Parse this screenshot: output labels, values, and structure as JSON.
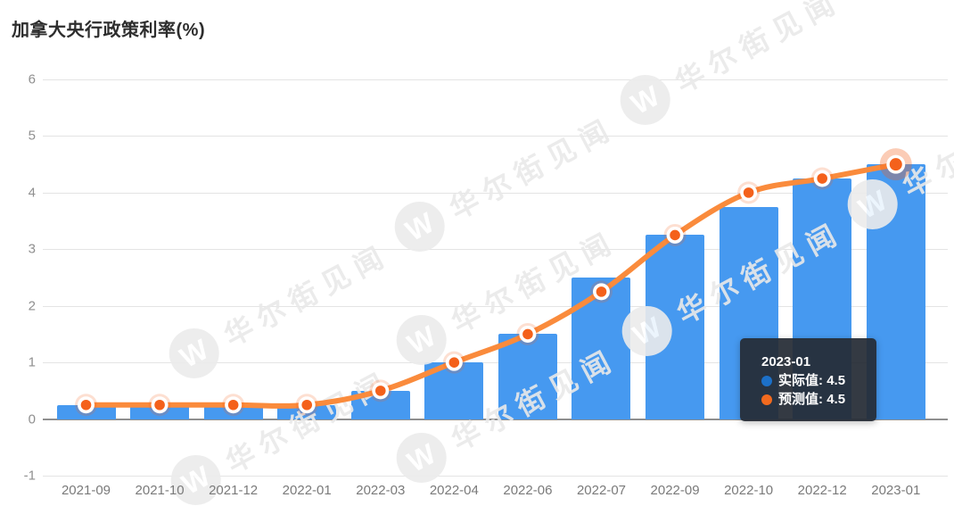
{
  "title": "加拿大央行政策利率(%)",
  "watermark": {
    "text": "华尔街见闻",
    "icon_letter": "W"
  },
  "tooltip": {
    "date": "2023-01",
    "items": [
      {
        "label": "实际值",
        "value": "4.5",
        "color": "#1c70c8"
      },
      {
        "label": "预测值",
        "value": "4.5",
        "color": "#f26a1e"
      }
    ]
  },
  "chart_data": {
    "type": "bar",
    "title": "加拿大央行政策利率(%)",
    "xlabel": "",
    "ylabel": "",
    "ylim": [
      -1,
      6
    ],
    "yticks": [
      6,
      5,
      4,
      3,
      2,
      1,
      0,
      -1
    ],
    "grid": true,
    "categories": [
      "2021-09",
      "2021-10",
      "2021-12",
      "2022-01",
      "2022-03",
      "2022-04",
      "2022-06",
      "2022-07",
      "2022-09",
      "2022-10",
      "2022-12",
      "2023-01"
    ],
    "series": [
      {
        "name": "实际值",
        "type": "bar",
        "color": "#4699f0",
        "values": [
          0.25,
          0.25,
          0.25,
          0.25,
          0.5,
          1.0,
          1.5,
          2.5,
          3.25,
          3.75,
          4.25,
          4.5
        ]
      },
      {
        "name": "预测值",
        "type": "line",
        "color": "#fa8b3c",
        "marker_color": "#f4611b",
        "values": [
          0.25,
          0.25,
          0.25,
          0.25,
          0.5,
          1.0,
          1.5,
          2.25,
          3.25,
          4.0,
          4.25,
          4.5
        ]
      }
    ],
    "highlight_index": 11,
    "legend_position": "none"
  }
}
